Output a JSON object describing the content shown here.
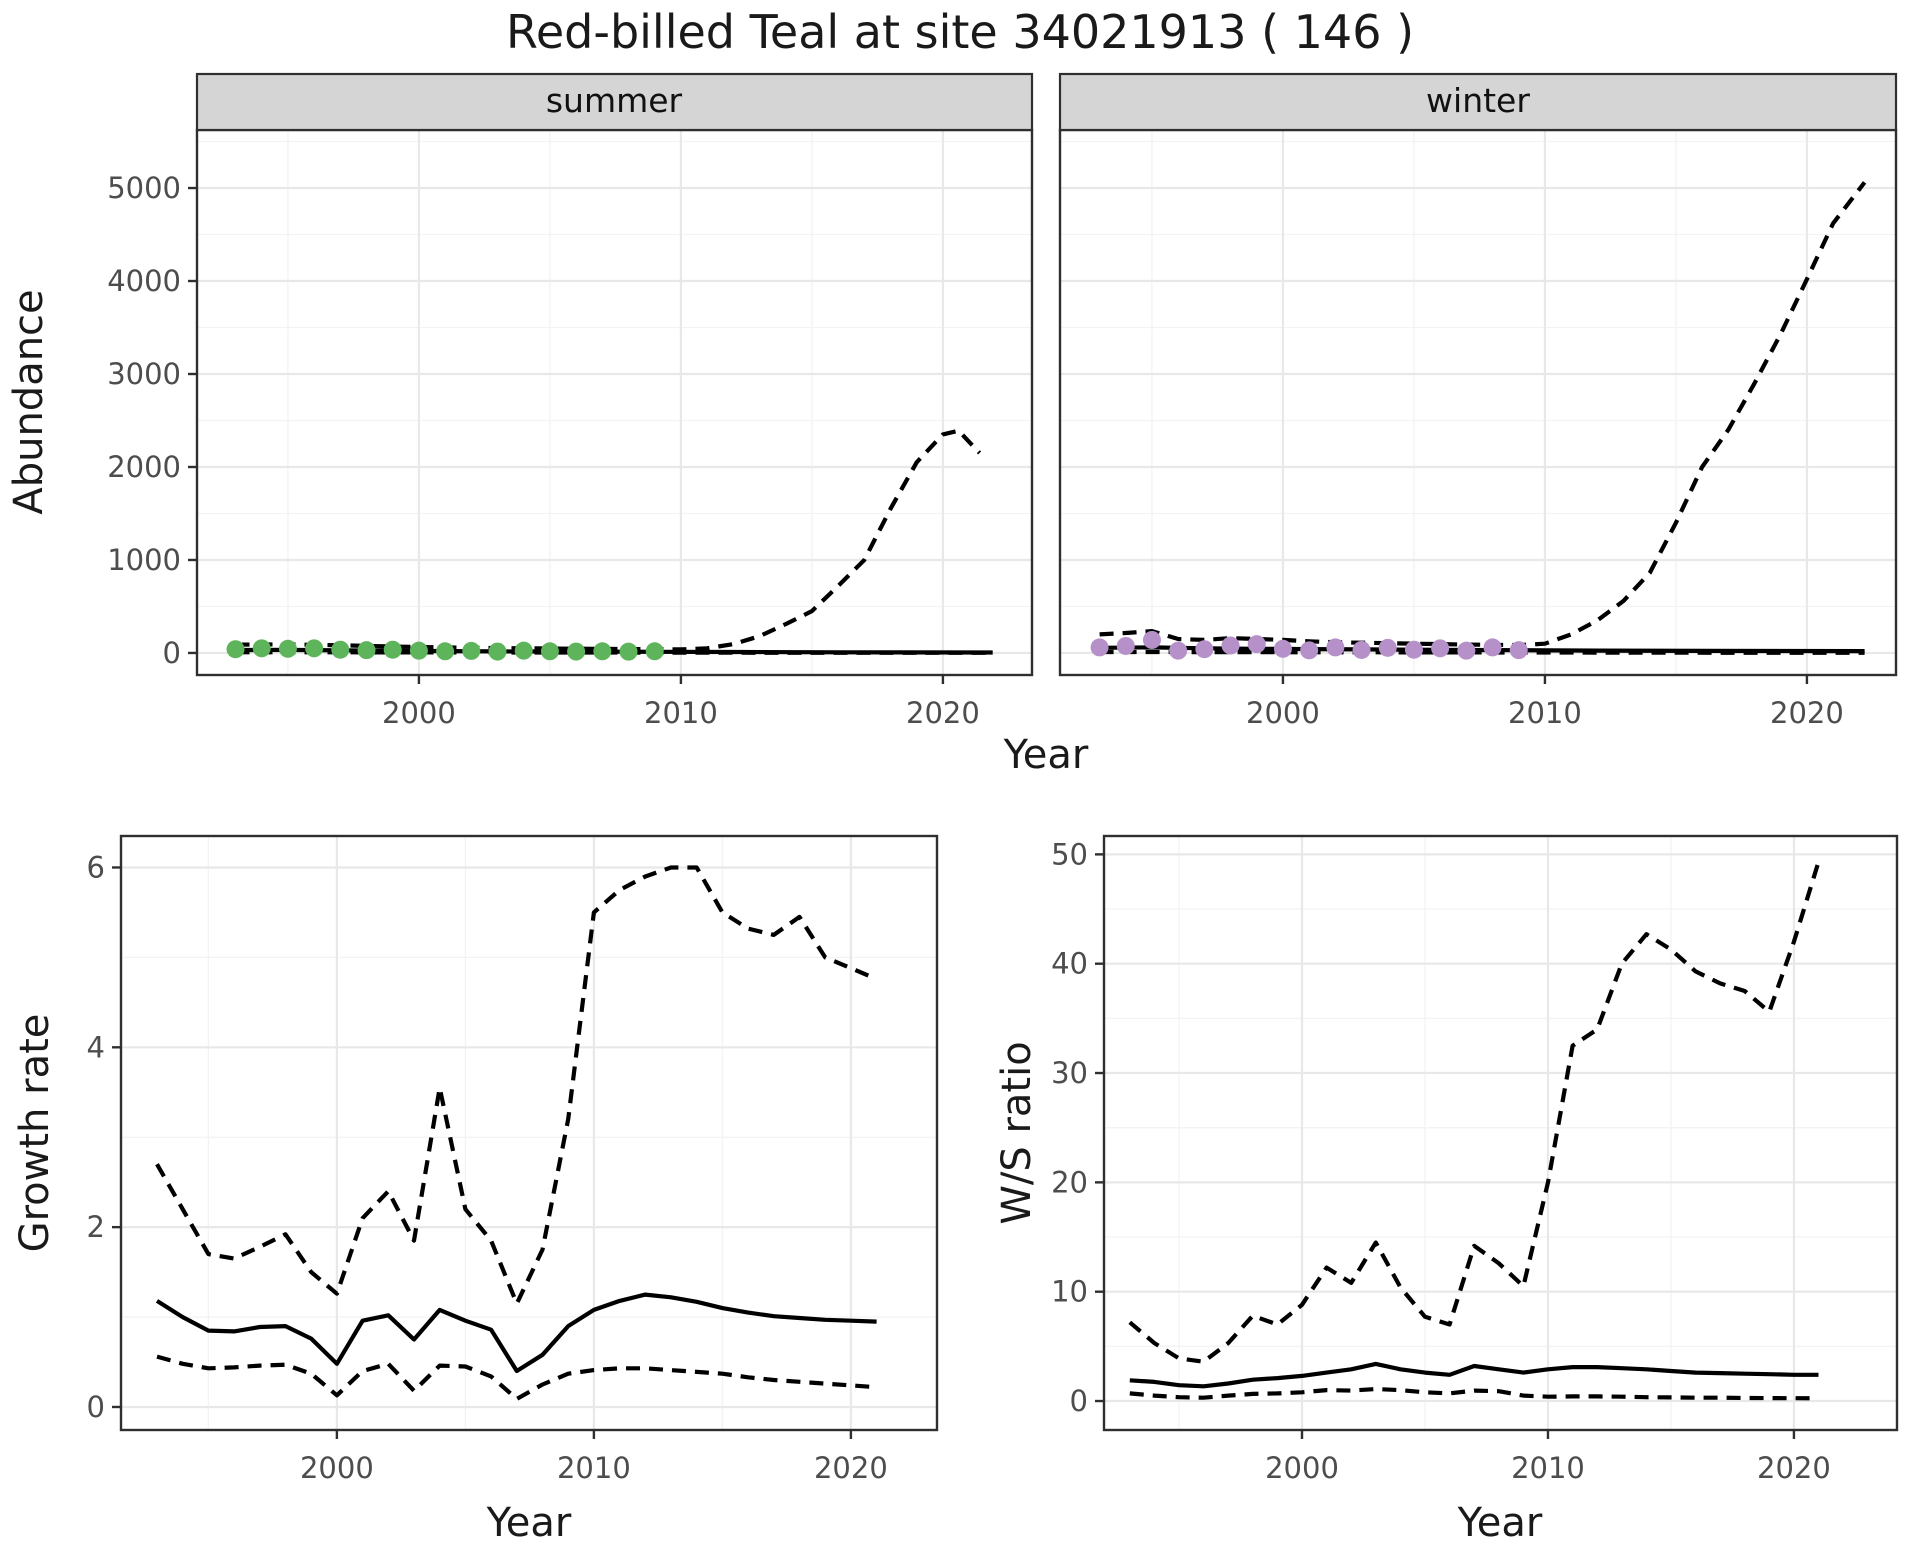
{
  "title": "Red-billed Teal at site 34021913 ( 146 )",
  "colors": {
    "summer_points": "#5db45a",
    "winter_points": "#b691c9",
    "line": "#000000",
    "strip_bg": "#d5d5d5",
    "grid_major": "#e8e8e8",
    "grid_minor": "#f3f3f3",
    "panel_border": "#2f2f2f",
    "axis_text": "#4d4d4d"
  },
  "chart_data": [
    {
      "id": "abundance_summer",
      "type": "line",
      "facet_label": "summer",
      "xlabel": "Year",
      "ylabel": "Abundance",
      "xlim": [
        1991.53,
        2023.4
      ],
      "ylim": [
        -237,
        5624
      ],
      "x_ticks": [
        2000,
        2010,
        2020
      ],
      "y_ticks": [
        0,
        1000,
        2000,
        3000,
        4000,
        5000
      ],
      "grid": true,
      "legend": false,
      "series": [
        {
          "name": "lower_ci",
          "style": "dashed",
          "x": [
            1993,
            2000,
            2009,
            2015,
            2021.9
          ],
          "y": [
            8,
            6,
            4,
            2,
            2
          ]
        },
        {
          "name": "upper_ci",
          "style": "dashed",
          "x": [
            1993,
            1995,
            1997,
            1999,
            2001,
            2003,
            2005,
            2007,
            2009,
            2010,
            2011,
            2012,
            2013,
            2014,
            2015,
            2016,
            2017,
            2018,
            2019,
            2020,
            2020.6,
            2021.4
          ],
          "y": [
            90,
            92,
            82,
            70,
            60,
            52,
            48,
            44,
            40,
            38,
            50,
            95,
            180,
            310,
            450,
            720,
            1000,
            1550,
            2050,
            2350,
            2390,
            2150
          ]
        },
        {
          "name": "model_median",
          "style": "solid",
          "x": [
            1993,
            1995,
            1997,
            1999,
            2001,
            2003,
            2005,
            2007,
            2009,
            2012,
            2016,
            2021.9
          ],
          "y": [
            32,
            33,
            28,
            25,
            20,
            17,
            16,
            14,
            13,
            10,
            7,
            5
          ]
        },
        {
          "name": "observed_counts",
          "style": "points",
          "color_key": "summer_points",
          "x": [
            1993,
            1994,
            1995,
            1996,
            1997,
            1998,
            1999,
            2000,
            2001,
            2002,
            2003,
            2004,
            2005,
            2006,
            2007,
            2008,
            2009
          ],
          "y": [
            40,
            50,
            45,
            50,
            35,
            30,
            35,
            25,
            18,
            22,
            15,
            25,
            18,
            15,
            18,
            14,
            18
          ]
        }
      ]
    },
    {
      "id": "abundance_winter",
      "type": "line",
      "facet_label": "winter",
      "xlabel": "Year",
      "ylabel": "Abundance",
      "xlim": [
        1991.49,
        2023.4
      ],
      "ylim": [
        -237,
        5624
      ],
      "x_ticks": [
        2000,
        2010,
        2020
      ],
      "y_ticks": [
        0,
        1000,
        2000,
        3000,
        4000,
        5000
      ],
      "grid": true,
      "legend": false,
      "series": [
        {
          "name": "lower_ci",
          "style": "dashed",
          "x": [
            1993,
            2000,
            2009,
            2015,
            2022.2
          ],
          "y": [
            10,
            8,
            5,
            3,
            2
          ]
        },
        {
          "name": "upper_ci",
          "style": "dashed",
          "x": [
            1993,
            1994,
            1995,
            1996,
            1997,
            1998,
            1999,
            2000,
            2001,
            2002,
            2003,
            2004,
            2005,
            2006,
            2007,
            2008,
            2009,
            2010,
            2011,
            2012,
            2013,
            2014,
            2015,
            2016,
            2017,
            2018,
            2019,
            2020,
            2021,
            2022.2
          ],
          "y": [
            200,
            215,
            235,
            150,
            140,
            160,
            150,
            140,
            125,
            115,
            110,
            105,
            100,
            95,
            90,
            88,
            85,
            100,
            200,
            350,
            560,
            860,
            1400,
            2000,
            2400,
            2900,
            3430,
            4020,
            4620,
            5060
          ]
        },
        {
          "name": "model_median",
          "style": "solid",
          "x": [
            1993,
            1995,
            1997,
            1999,
            2001,
            2003,
            2005,
            2007,
            2009,
            2012,
            2016,
            2022.2
          ],
          "y": [
            55,
            60,
            50,
            45,
            42,
            38,
            35,
            32,
            30,
            25,
            22,
            20
          ]
        },
        {
          "name": "observed_counts",
          "style": "points",
          "color_key": "winter_points",
          "x": [
            1993,
            1994,
            1995,
            1996,
            1997,
            1998,
            1999,
            2000,
            2001,
            2002,
            2003,
            2004,
            2005,
            2006,
            2007,
            2008,
            2009
          ],
          "y": [
            60,
            75,
            140,
            25,
            40,
            80,
            95,
            45,
            28,
            60,
            32,
            55,
            35,
            50,
            25,
            60,
            30
          ]
        }
      ]
    },
    {
      "id": "growth_rate",
      "type": "line",
      "xlabel": "Year",
      "ylabel": "Growth rate",
      "xlim": [
        1991.6,
        2023.35
      ],
      "ylim": [
        -0.256,
        6.35
      ],
      "x_ticks": [
        2000,
        2010,
        2020
      ],
      "y_ticks": [
        0,
        2,
        4,
        6
      ],
      "grid": true,
      "legend": false,
      "x_years": [
        1993,
        1994,
        1995,
        1996,
        1997,
        1998,
        1999,
        2000,
        2001,
        2002,
        2003,
        2004,
        2005,
        2006,
        2007,
        2008,
        2009,
        2010,
        2011,
        2012,
        2013,
        2014,
        2015,
        2016,
        2017,
        2018,
        2019,
        2020,
        2021
      ],
      "series": [
        {
          "name": "lower_ci",
          "style": "dashed",
          "x": [
            1993,
            1994,
            1995,
            1996,
            1997,
            1998,
            1999,
            2000,
            2001,
            2002,
            2003,
            2004,
            2005,
            2006,
            2007,
            2008,
            2009,
            2010,
            2011,
            2012,
            2013,
            2014,
            2015,
            2016,
            2017,
            2018,
            2019,
            2020,
            2021
          ],
          "y": [
            0.56,
            0.48,
            0.43,
            0.44,
            0.46,
            0.47,
            0.37,
            0.13,
            0.4,
            0.48,
            0.18,
            0.46,
            0.45,
            0.34,
            0.09,
            0.25,
            0.37,
            0.41,
            0.43,
            0.43,
            0.41,
            0.39,
            0.37,
            0.33,
            0.3,
            0.28,
            0.26,
            0.24,
            0.22
          ]
        },
        {
          "name": "upper_ci",
          "style": "dashed",
          "x": [
            1993,
            1994,
            1995,
            1996,
            1997,
            1998,
            1999,
            2000,
            2001,
            2002,
            2003,
            2004,
            2005,
            2006,
            2007,
            2008,
            2009,
            2010,
            2011,
            2012,
            2013,
            2014,
            2015,
            2016,
            2017,
            2018,
            2019,
            2020,
            2021
          ],
          "y": [
            2.7,
            2.2,
            1.7,
            1.65,
            1.78,
            1.92,
            1.5,
            1.26,
            2.1,
            2.4,
            1.85,
            3.55,
            2.2,
            1.85,
            1.15,
            1.75,
            3.2,
            5.5,
            5.75,
            5.9,
            6.0,
            6.0,
            5.5,
            5.32,
            5.25,
            5.45,
            5.0,
            4.88,
            4.76
          ]
        },
        {
          "name": "model_median",
          "style": "solid",
          "x": [
            1993,
            1994,
            1995,
            1996,
            1997,
            1998,
            1999,
            2000,
            2001,
            2002,
            2003,
            2004,
            2005,
            2006,
            2007,
            2008,
            2009,
            2010,
            2011,
            2012,
            2013,
            2014,
            2015,
            2016,
            2017,
            2018,
            2019,
            2020,
            2021
          ],
          "y": [
            1.18,
            1.0,
            0.85,
            0.84,
            0.89,
            0.9,
            0.76,
            0.48,
            0.96,
            1.02,
            0.75,
            1.08,
            0.96,
            0.86,
            0.4,
            0.58,
            0.9,
            1.08,
            1.18,
            1.25,
            1.22,
            1.17,
            1.1,
            1.05,
            1.01,
            0.99,
            0.97,
            0.96,
            0.95
          ]
        }
      ]
    },
    {
      "id": "ws_ratio",
      "type": "line",
      "xlabel": "Year",
      "ylabel": "W/S ratio",
      "xlim": [
        1991.95,
        2024.19
      ],
      "ylim": [
        -2.65,
        51.68
      ],
      "x_ticks": [
        2000,
        2010,
        2020
      ],
      "y_ticks": [
        0,
        10,
        20,
        30,
        40,
        50
      ],
      "grid": true,
      "legend": false,
      "series": [
        {
          "name": "lower_ci",
          "style": "dashed",
          "x": [
            1993,
            1994,
            1995,
            1996,
            1997,
            1998,
            1999,
            2000,
            2001,
            2002,
            2003,
            2004,
            2005,
            2006,
            2007,
            2008,
            2009,
            2010,
            2011,
            2012,
            2013,
            2014,
            2015,
            2016,
            2017,
            2018,
            2019,
            2020,
            2021
          ],
          "y": [
            0.7,
            0.5,
            0.35,
            0.3,
            0.5,
            0.65,
            0.7,
            0.8,
            1.0,
            0.95,
            1.1,
            1.0,
            0.8,
            0.7,
            0.95,
            0.9,
            0.5,
            0.4,
            0.42,
            0.42,
            0.4,
            0.35,
            0.33,
            0.3,
            0.3,
            0.28,
            0.27,
            0.26,
            0.25
          ]
        },
        {
          "name": "upper_ci",
          "style": "dashed",
          "x": [
            1993,
            1994,
            1995,
            1996,
            1997,
            1998,
            1999,
            2000,
            2001,
            2002,
            2003,
            2004,
            2005,
            2006,
            2007,
            2008,
            2009,
            2010,
            2011,
            2012,
            2013,
            2014,
            2015,
            2016,
            2017,
            2018,
            2019,
            2020,
            2021
          ],
          "y": [
            7.2,
            5.3,
            3.9,
            3.6,
            5.3,
            7.8,
            7.0,
            8.8,
            12.2,
            10.8,
            14.5,
            10.4,
            7.7,
            7.0,
            14.2,
            12.6,
            10.5,
            20.0,
            32.5,
            34.0,
            40.0,
            42.7,
            41.3,
            39.3,
            38.2,
            37.5,
            35.6,
            42.0,
            49.3
          ]
        },
        {
          "name": "model_median",
          "style": "solid",
          "x": [
            1993,
            1994,
            1995,
            1996,
            1997,
            1998,
            1999,
            2000,
            2001,
            2002,
            2003,
            2004,
            2005,
            2006,
            2007,
            2008,
            2009,
            2010,
            2011,
            2012,
            2013,
            2014,
            2015,
            2016,
            2017,
            2018,
            2019,
            2020,
            2021
          ],
          "y": [
            1.9,
            1.75,
            1.45,
            1.35,
            1.6,
            1.95,
            2.1,
            2.3,
            2.6,
            2.9,
            3.4,
            2.9,
            2.6,
            2.4,
            3.2,
            2.9,
            2.6,
            2.9,
            3.1,
            3.1,
            3.0,
            2.9,
            2.75,
            2.6,
            2.55,
            2.5,
            2.45,
            2.4,
            2.4
          ]
        }
      ]
    }
  ]
}
